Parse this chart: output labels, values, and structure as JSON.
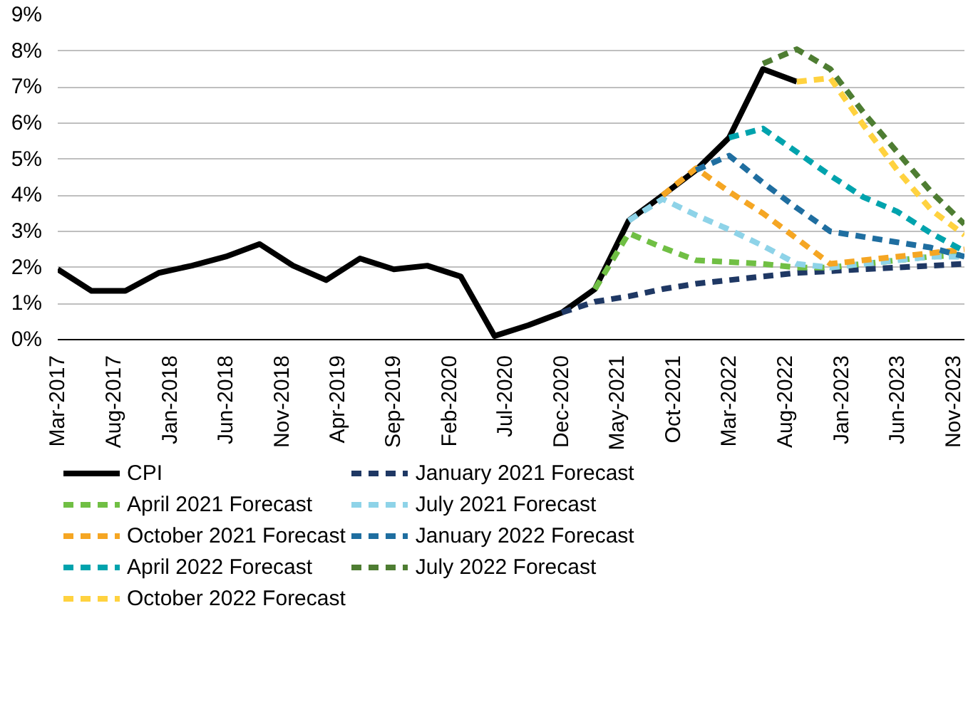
{
  "chart_data": {
    "type": "line",
    "x": [
      "2017-03",
      "2017-06",
      "2017-09",
      "2017-12",
      "2018-03",
      "2018-06",
      "2018-09",
      "2018-12",
      "2019-03",
      "2019-06",
      "2019-09",
      "2019-12",
      "2020-03",
      "2020-06",
      "2020-09",
      "2020-12",
      "2021-03",
      "2021-06",
      "2021-09",
      "2021-12",
      "2022-03",
      "2022-06",
      "2022-09",
      "2022-12",
      "2023-03",
      "2023-06",
      "2023-09",
      "2023-12"
    ],
    "series": [
      {
        "name": "CPI",
        "color": "#000000",
        "line_style": "solid",
        "values": [
          1.95,
          1.35,
          1.35,
          1.85,
          2.05,
          2.3,
          2.65,
          2.05,
          1.65,
          2.25,
          1.95,
          2.05,
          1.75,
          0.1,
          0.4,
          0.75,
          1.4,
          3.3,
          4.0,
          4.7,
          5.6,
          7.5,
          7.15,
          null,
          null,
          null,
          null,
          null
        ]
      },
      {
        "name": "January 2021 Forecast",
        "color": "#1f3864",
        "line_style": "dashed",
        "values": [
          null,
          null,
          null,
          null,
          null,
          null,
          null,
          null,
          null,
          null,
          null,
          null,
          null,
          null,
          null,
          0.75,
          1.05,
          1.2,
          1.4,
          1.55,
          1.65,
          1.75,
          1.85,
          1.9,
          1.95,
          2.0,
          2.05,
          2.1
        ]
      },
      {
        "name": "April 2021 Forecast",
        "color": "#70bf44",
        "line_style": "dashed",
        "values": [
          null,
          null,
          null,
          null,
          null,
          null,
          null,
          null,
          null,
          null,
          null,
          null,
          null,
          null,
          null,
          null,
          1.4,
          2.95,
          2.55,
          2.2,
          2.15,
          2.1,
          2.0,
          2.0,
          2.1,
          2.2,
          2.3,
          2.35
        ]
      },
      {
        "name": "July 2021 Forecast",
        "color": "#8ed3e8",
        "line_style": "dashed",
        "values": [
          null,
          null,
          null,
          null,
          null,
          null,
          null,
          null,
          null,
          null,
          null,
          null,
          null,
          null,
          null,
          null,
          null,
          3.3,
          3.9,
          3.45,
          3.05,
          2.6,
          2.1,
          2.0,
          2.1,
          2.2,
          2.3,
          2.3
        ]
      },
      {
        "name": "October 2021 Forecast",
        "color": "#f5a623",
        "line_style": "dashed",
        "values": [
          null,
          null,
          null,
          null,
          null,
          null,
          null,
          null,
          null,
          null,
          null,
          null,
          null,
          null,
          null,
          null,
          null,
          null,
          4.0,
          4.75,
          4.1,
          3.5,
          2.8,
          2.1,
          2.2,
          2.3,
          2.4,
          2.5
        ]
      },
      {
        "name": "January 2022 Forecast",
        "color": "#1f6ea0",
        "line_style": "dashed",
        "values": [
          null,
          null,
          null,
          null,
          null,
          null,
          null,
          null,
          null,
          null,
          null,
          null,
          null,
          null,
          null,
          null,
          null,
          null,
          null,
          4.7,
          5.1,
          4.35,
          3.65,
          3.0,
          2.85,
          2.7,
          2.55,
          2.3
        ]
      },
      {
        "name": "April 2022 Forecast",
        "color": "#00a3ad",
        "line_style": "dashed",
        "values": [
          null,
          null,
          null,
          null,
          null,
          null,
          null,
          null,
          null,
          null,
          null,
          null,
          null,
          null,
          null,
          null,
          null,
          null,
          null,
          null,
          5.6,
          5.85,
          5.2,
          4.55,
          3.95,
          3.55,
          2.95,
          2.45
        ]
      },
      {
        "name": "July 2022 Forecast",
        "color": "#4e7d32",
        "line_style": "dashed",
        "values": [
          null,
          null,
          null,
          null,
          null,
          null,
          null,
          null,
          null,
          null,
          null,
          null,
          null,
          null,
          null,
          null,
          null,
          null,
          null,
          null,
          null,
          7.65,
          8.05,
          7.5,
          6.3,
          5.2,
          4.1,
          3.2
        ]
      },
      {
        "name": "October 2022 Forecast",
        "color": "#ffd23f",
        "line_style": "dashed",
        "values": [
          null,
          null,
          null,
          null,
          null,
          null,
          null,
          null,
          null,
          null,
          null,
          null,
          null,
          null,
          null,
          null,
          null,
          null,
          null,
          null,
          null,
          null,
          7.15,
          7.25,
          5.95,
          4.7,
          3.6,
          2.9
        ]
      }
    ],
    "xlim": [
      "2017-03",
      "2023-12"
    ],
    "xticks": [
      {
        "value": "2017-03",
        "label": "Mar-2017"
      },
      {
        "value": "2017-08",
        "label": "Aug-2017"
      },
      {
        "value": "2018-01",
        "label": "Jan-2018"
      },
      {
        "value": "2018-06",
        "label": "Jun-2018"
      },
      {
        "value": "2018-11",
        "label": "Nov-2018"
      },
      {
        "value": "2019-04",
        "label": "Apr-2019"
      },
      {
        "value": "2019-09",
        "label": "Sep-2019"
      },
      {
        "value": "2020-02",
        "label": "Feb-2020"
      },
      {
        "value": "2020-07",
        "label": "Jul-2020"
      },
      {
        "value": "2020-12",
        "label": "Dec-2020"
      },
      {
        "value": "2021-05",
        "label": "May-2021"
      },
      {
        "value": "2021-10",
        "label": "Oct-2021"
      },
      {
        "value": "2022-03",
        "label": "Mar-2022"
      },
      {
        "value": "2022-08",
        "label": "Aug-2022"
      },
      {
        "value": "2023-01",
        "label": "Jan-2023"
      },
      {
        "value": "2023-06",
        "label": "Jun-2023"
      },
      {
        "value": "2023-11",
        "label": "Nov-2023"
      }
    ],
    "ylim": [
      0,
      9
    ],
    "yticks": [
      {
        "value": 0,
        "label": "0%"
      },
      {
        "value": 1,
        "label": "1%"
      },
      {
        "value": 2,
        "label": "2%"
      },
      {
        "value": 3,
        "label": "3%"
      },
      {
        "value": 4,
        "label": "4%"
      },
      {
        "value": 5,
        "label": "5%"
      },
      {
        "value": 6,
        "label": "6%"
      },
      {
        "value": 7,
        "label": "7%"
      },
      {
        "value": 8,
        "label": "8%"
      },
      {
        "value": 9,
        "label": "9%"
      }
    ],
    "grid": "y",
    "legend": "bottom",
    "marker": "none"
  }
}
